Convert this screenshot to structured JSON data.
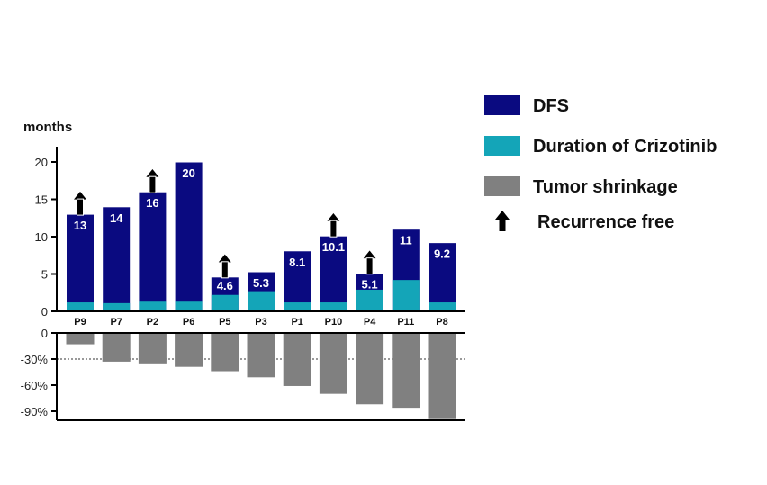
{
  "chart_data": {
    "type": "bar",
    "categories": [
      "P9",
      "P7",
      "P2",
      "P6",
      "P5",
      "P3",
      "P1",
      "P10",
      "P4",
      "P11",
      "P8"
    ],
    "y_unit_label": "months",
    "series": [
      {
        "name": "DFS",
        "values": [
          13,
          14,
          16,
          20,
          4.6,
          5.3,
          8.1,
          10.1,
          5.1,
          11,
          9.2
        ],
        "color": "#0a0a80"
      },
      {
        "name": "Duration of Crizotinib",
        "values": [
          1.2,
          1.1,
          1.3,
          1.3,
          2.2,
          2.7,
          1.2,
          1.2,
          2.9,
          4.2,
          1.2
        ],
        "color": "#14a5b8"
      },
      {
        "name": "Tumor shrinkage",
        "values": [
          -13,
          -33,
          -35,
          -39,
          -44,
          -51,
          -61,
          -70,
          -82,
          -86,
          -99
        ],
        "color": "#808080"
      }
    ],
    "data_labels": [
      "13",
      "14",
      "16",
      "20",
      "4.6",
      "5.3",
      "8.1",
      "10.1",
      "5.1",
      "11",
      "9.2"
    ],
    "recurrence_free": [
      true,
      false,
      true,
      false,
      true,
      false,
      false,
      true,
      true,
      false,
      false
    ],
    "top_axis": {
      "ylim": [
        0,
        22
      ],
      "ticks": [
        "0",
        "5",
        "10",
        "15",
        "20"
      ],
      "tick_values": [
        0,
        5,
        10,
        15,
        20
      ]
    },
    "bottom_axis": {
      "ylim": [
        -100,
        0
      ],
      "ticks": [
        "0",
        "-30%",
        "-60%",
        "-90%"
      ],
      "tick_values": [
        0,
        -30,
        -60,
        -90
      ]
    },
    "reference_line": -30,
    "legend": [
      {
        "label": "DFS",
        "symbol": "box",
        "color": "#0a0a80"
      },
      {
        "label": "Duration of Crizotinib",
        "symbol": "box",
        "color": "#14a5b8"
      },
      {
        "label": "Tumor shrinkage",
        "symbol": "box",
        "color": "#808080"
      },
      {
        "label": "Recurrence free",
        "symbol": "arrow",
        "color": "#000000"
      }
    ],
    "legend_position": "right"
  }
}
